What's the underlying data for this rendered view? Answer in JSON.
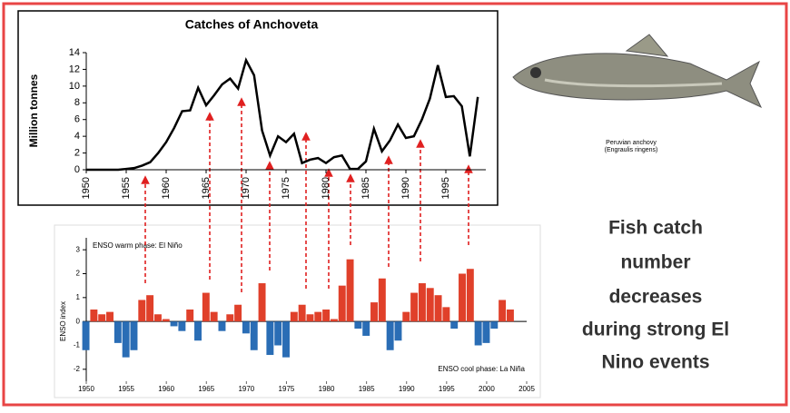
{
  "chart_data": [
    {
      "type": "line",
      "title": "Catches of Anchoveta",
      "ylabel": "Million tonnes",
      "x": [
        1950,
        1951,
        1952,
        1953,
        1954,
        1955,
        1956,
        1957,
        1958,
        1959,
        1960,
        1961,
        1962,
        1963,
        1964,
        1965,
        1966,
        1967,
        1968,
        1969,
        1970,
        1971,
        1972,
        1973,
        1974,
        1975,
        1976,
        1977,
        1978,
        1979,
        1980,
        1981,
        1982,
        1983,
        1984,
        1985,
        1986,
        1987,
        1988,
        1989,
        1990,
        1991,
        1992,
        1993,
        1994,
        1995,
        1996,
        1997,
        1998,
        1999
      ],
      "values": [
        0,
        0,
        0,
        0,
        0,
        0.1,
        0.2,
        0.5,
        0.9,
        2,
        3.3,
        5,
        7,
        7.1,
        9.8,
        7.7,
        8.9,
        10.2,
        10.9,
        9.7,
        13.1,
        11.3,
        4.7,
        1.7,
        4,
        3.3,
        4.3,
        0.8,
        1.2,
        1.4,
        0.8,
        1.5,
        1.7,
        0.1,
        0.1,
        1,
        4.9,
        2.2,
        3.5,
        5.4,
        3.8,
        4,
        6,
        8.5,
        12.5,
        8.7,
        8.8,
        7.6,
        1.6,
        8.7
      ],
      "color": "#000000",
      "xlim": [
        1950,
        2000
      ],
      "xticks": [
        1950,
        1955,
        1960,
        1965,
        1970,
        1975,
        1980,
        1985,
        1990,
        1995
      ],
      "ylim": [
        0,
        14
      ],
      "yticks": [
        0,
        2,
        4,
        6,
        8,
        10,
        12,
        14
      ]
    },
    {
      "type": "bar",
      "ylabel": "ENSO index",
      "annotations": [
        "ENSO warm phase: El Niño",
        "ENSO cool phase: La Niña"
      ],
      "x": [
        1950,
        1951,
        1952,
        1953,
        1954,
        1955,
        1956,
        1957,
        1958,
        1959,
        1960,
        1961,
        1962,
        1963,
        1964,
        1965,
        1966,
        1967,
        1968,
        1969,
        1970,
        1971,
        1972,
        1973,
        1974,
        1975,
        1976,
        1977,
        1978,
        1979,
        1980,
        1981,
        1982,
        1983,
        1984,
        1985,
        1986,
        1987,
        1988,
        1989,
        1990,
        1991,
        1992,
        1993,
        1994,
        1995,
        1996,
        1997,
        1998,
        1999,
        2000,
        2001,
        2002,
        2003
      ],
      "values": [
        -1.2,
        0.5,
        0.3,
        0.4,
        -0.9,
        -1.5,
        -1.2,
        0.9,
        1.1,
        0.3,
        0.1,
        -0.2,
        -0.4,
        0.5,
        -0.8,
        1.2,
        0.4,
        -0.4,
        0.3,
        0.7,
        -0.5,
        -1.2,
        1.6,
        -1.4,
        -1,
        -1.5,
        0.4,
        0.7,
        0.3,
        0.4,
        0.5,
        0.1,
        1.5,
        2.6,
        -0.3,
        -0.6,
        0.8,
        1.8,
        -1.2,
        -0.8,
        0.4,
        1.2,
        1.6,
        1.4,
        1.1,
        0.6,
        -0.3,
        2,
        2.2,
        -1,
        -0.9,
        -0.3,
        0.9,
        0.5
      ],
      "positive_color": "#e0402a",
      "negative_color": "#2a6db5",
      "xlim": [
        1950,
        2005
      ],
      "xticks": [
        1950,
        1955,
        1960,
        1965,
        1970,
        1975,
        1980,
        1985,
        1990,
        1995,
        2000,
        2005
      ],
      "ylim": [
        -2.5,
        3.5
      ],
      "yticks": [
        -2,
        -1,
        0,
        1,
        2,
        3
      ]
    }
  ],
  "fish_caption": [
    "Peruvian anchovy",
    "(Engraulis ringens)"
  ],
  "message": [
    "Fish catch",
    "number",
    "decreases",
    "during strong El",
    "Nino events"
  ]
}
